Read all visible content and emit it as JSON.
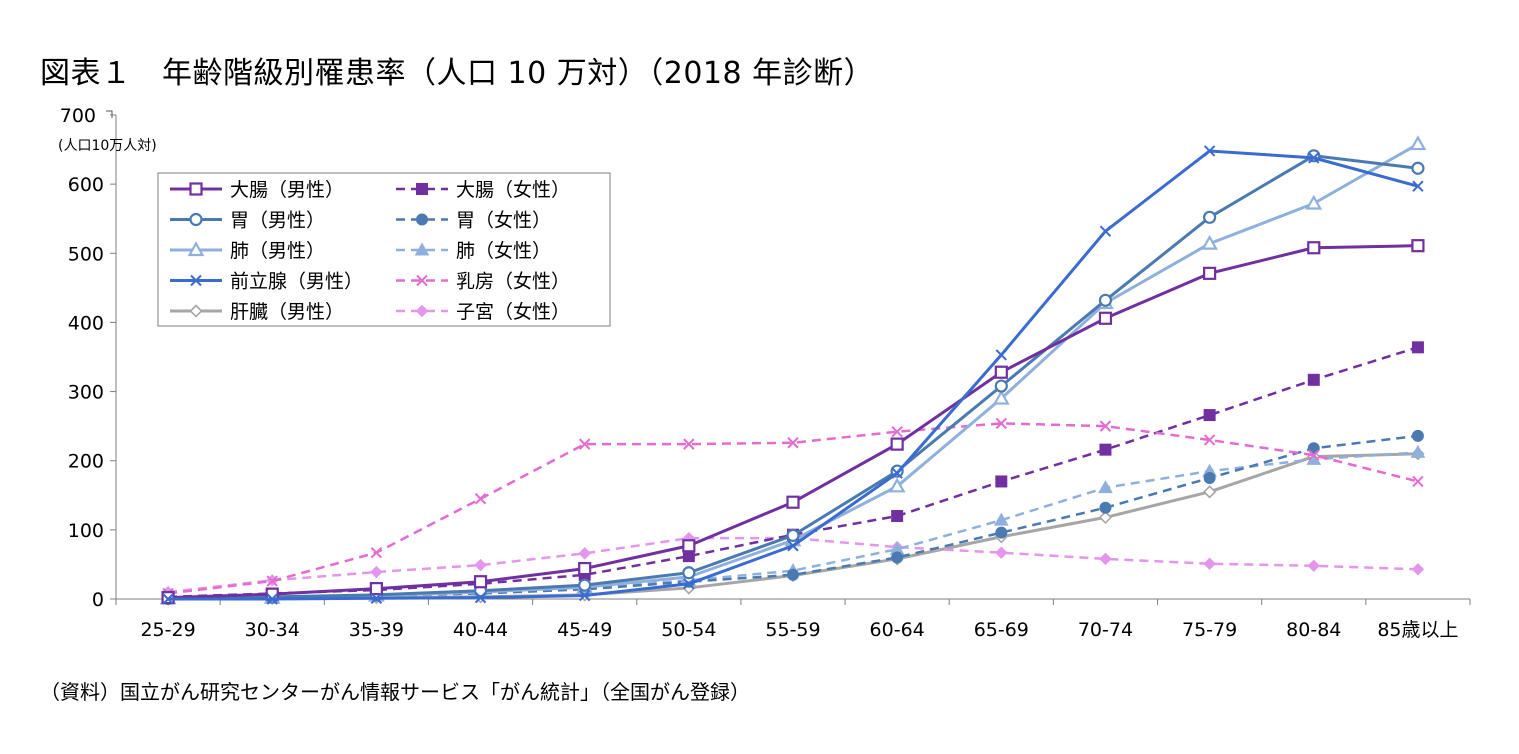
{
  "title": "図表１　年齢階級別罹患率（人口 10 万対）（2018 年診断）",
  "source": "（資料）国立がん研究センターがん情報サービス「がん統計」（全国がん登録）",
  "chart_data": {
    "type": "line",
    "title": "図表１　年齢階級別罹患率（人口 10 万対）（2018 年診断）",
    "xlabel": "",
    "ylabel": "(人口10万人対)",
    "ylim": [
      0,
      700
    ],
    "yticks": [
      0,
      100,
      200,
      300,
      400,
      500,
      600,
      700
    ],
    "grid": false,
    "legend": "top-left",
    "categories": [
      "25-29",
      "30-34",
      "35-39",
      "40-44",
      "45-49",
      "50-54",
      "55-59",
      "60-64",
      "65-69",
      "70-74",
      "75-79",
      "80-84",
      "85歳以上"
    ],
    "series": [
      {
        "name": "大腸（男性）",
        "color": "#7030a0",
        "dash": "solid",
        "marker": "square-open",
        "values": [
          2,
          7,
          15,
          25,
          44,
          77,
          140,
          224,
          328,
          406,
          471,
          508,
          511
        ]
      },
      {
        "name": "大腸（女性）",
        "color": "#7030a0",
        "dash": "dashed",
        "marker": "square-filled",
        "values": [
          3,
          8,
          13,
          22,
          35,
          62,
          93,
          120,
          170,
          216,
          266,
          317,
          364
        ]
      },
      {
        "name": "胃（男性）",
        "color": "#4a7ab0",
        "dash": "solid",
        "marker": "circle-open",
        "values": [
          1,
          3,
          6,
          12,
          20,
          38,
          92,
          185,
          308,
          432,
          552,
          641,
          623
        ]
      },
      {
        "name": "胃（女性）",
        "color": "#4a7ab0",
        "dash": "dashed",
        "marker": "circle-filled",
        "values": [
          1,
          3,
          5,
          8,
          14,
          25,
          35,
          60,
          96,
          132,
          175,
          218,
          236
        ]
      },
      {
        "name": "肺（男性）",
        "color": "#8fb0dc",
        "dash": "solid",
        "marker": "triangle-open",
        "values": [
          1,
          2,
          5,
          10,
          17,
          32,
          85,
          163,
          290,
          428,
          514,
          572,
          658
        ]
      },
      {
        "name": "肺（女性）",
        "color": "#8fb0dc",
        "dash": "dashed",
        "marker": "triangle-filled",
        "values": [
          1,
          2,
          5,
          9,
          16,
          27,
          41,
          72,
          114,
          161,
          185,
          202,
          212
        ]
      },
      {
        "name": "前立腺（男性）",
        "color": "#3a6bd0",
        "dash": "solid",
        "marker": "x",
        "values": [
          0,
          0,
          1,
          2,
          5,
          22,
          77,
          182,
          353,
          532,
          648,
          638,
          597
        ]
      },
      {
        "name": "乳房（女性）",
        "color": "#e46bd0",
        "dash": "dashed",
        "marker": "x",
        "values": [
          8,
          26,
          67,
          145,
          224,
          224,
          226,
          242,
          254,
          250,
          230,
          208,
          170
        ]
      },
      {
        "name": "肝臓（男性）",
        "color": "#a6a6a6",
        "dash": "solid",
        "marker": "diamond-open",
        "values": [
          0,
          1,
          2,
          3,
          6,
          16,
          34,
          58,
          90,
          118,
          155,
          206,
          210
        ]
      },
      {
        "name": "子宮（女性）",
        "color": "#e495ec",
        "dash": "dashed",
        "marker": "diamond-filled",
        "values": [
          10,
          27,
          39,
          49,
          66,
          88,
          88,
          75,
          67,
          58,
          51,
          48,
          43
        ]
      }
    ]
  }
}
